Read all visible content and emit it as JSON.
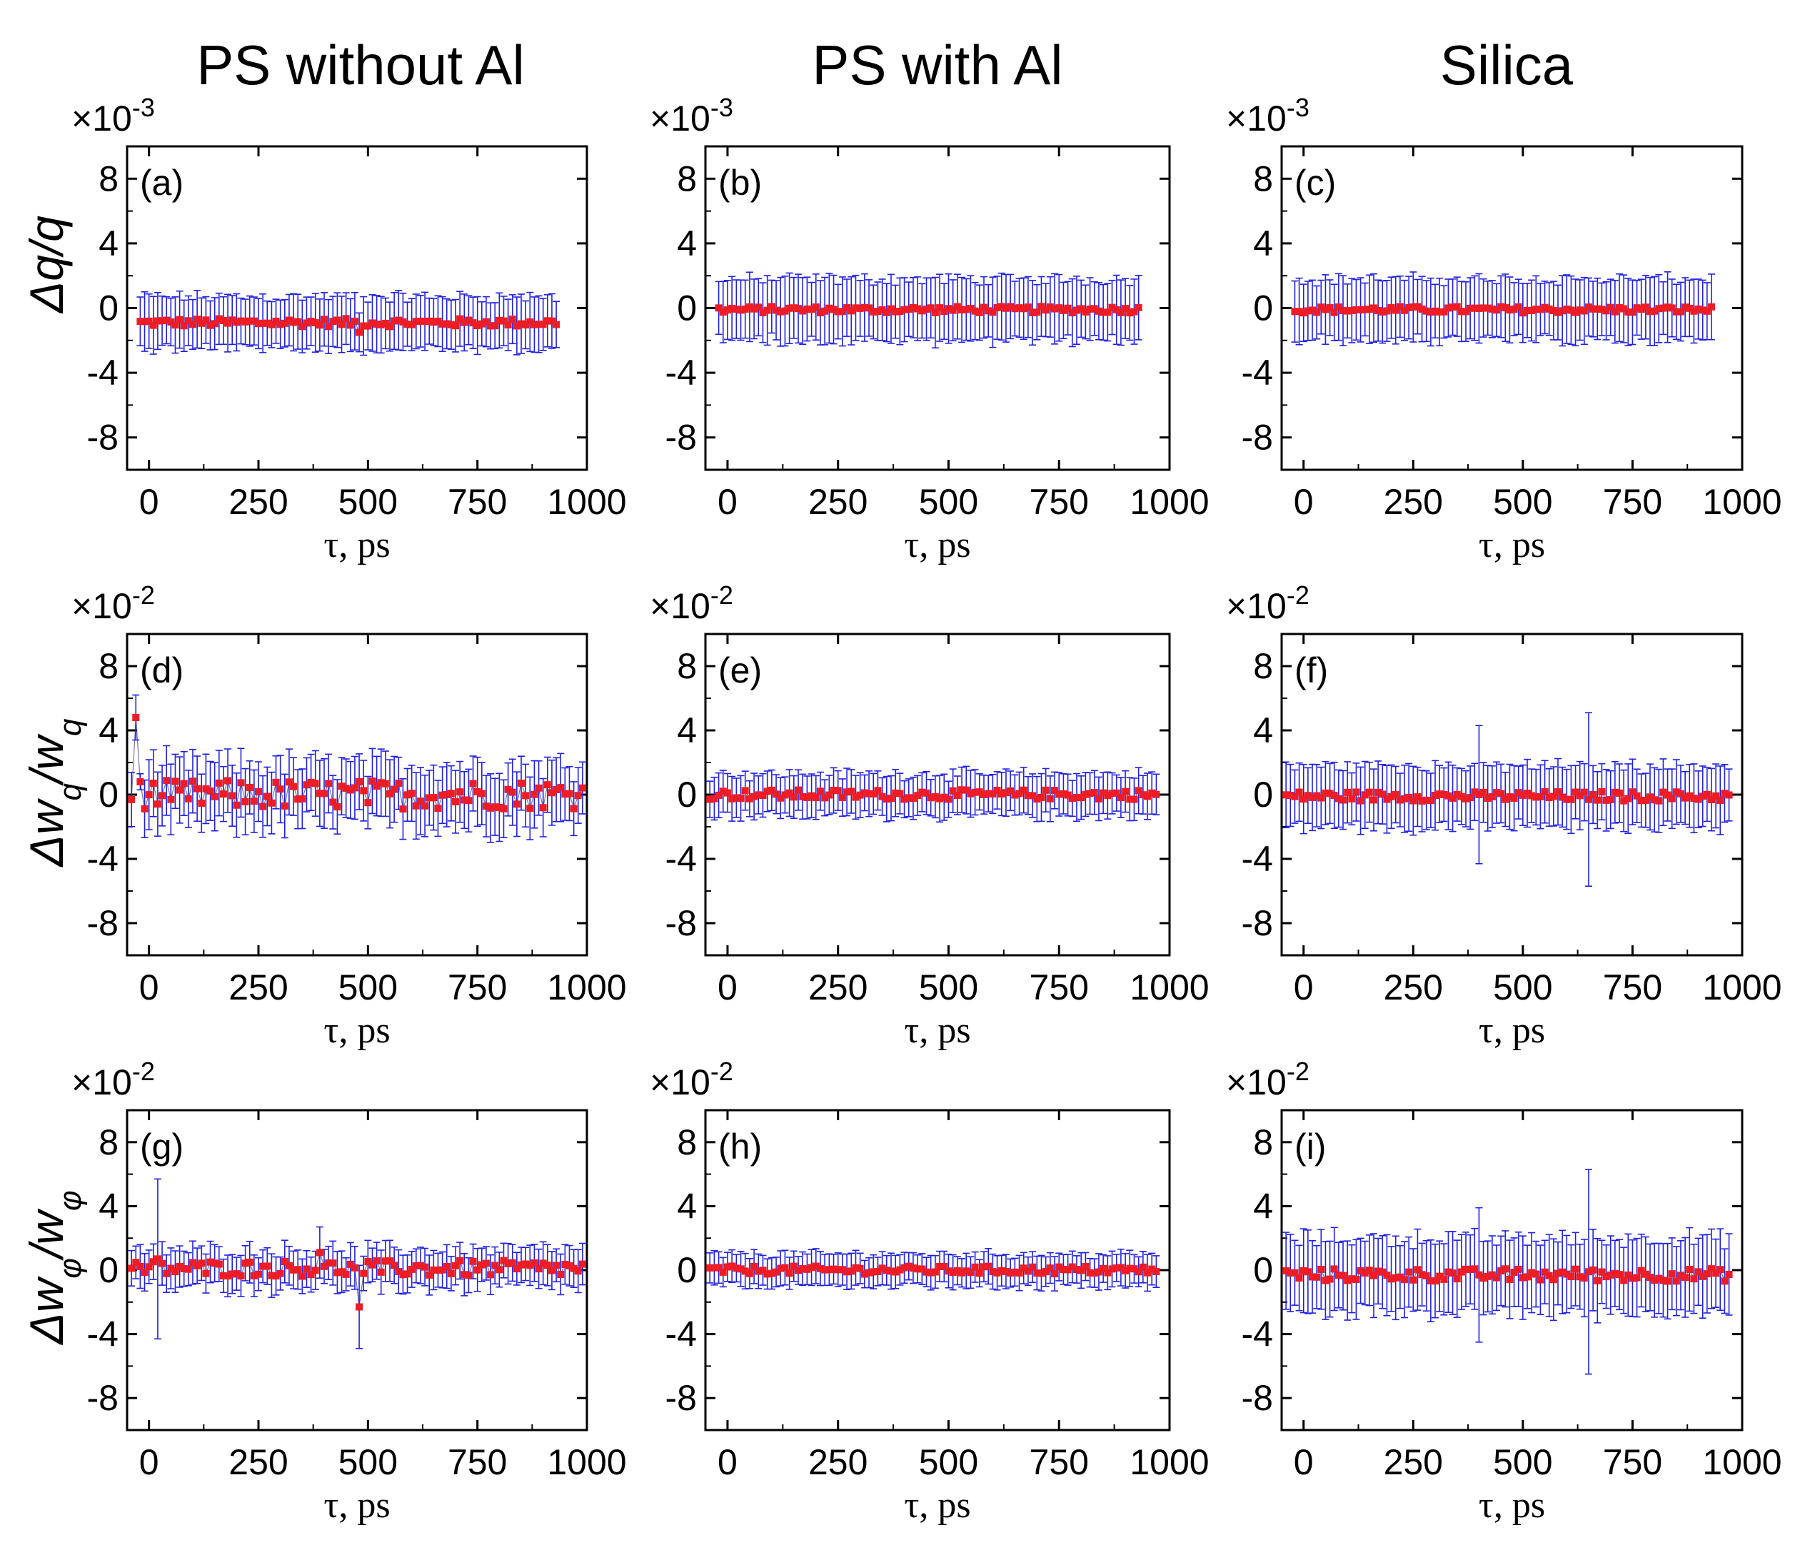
{
  "column_titles": [
    "PS without Al",
    "PS with Al",
    "Silica"
  ],
  "row_ylabels": [
    {
      "main": "Δq/q",
      "sub": ""
    },
    {
      "main": "Δw",
      "sub": "q",
      "mid": "/w",
      "sub2": "q"
    },
    {
      "main": "Δw",
      "sub": "φ",
      "mid": "/w",
      "sub2": "φ"
    }
  ],
  "colors": {
    "marker": "#ee1c24",
    "errorbar": "#2020e0",
    "axis": "#000000"
  },
  "chart_data": [
    {
      "type": "scatter",
      "panel": "(a)",
      "xlabel": "τ, ps",
      "ylabel": "Δq/q",
      "scale_base": "×10",
      "scale_exp": "-3",
      "xlim": [
        -50,
        1000
      ],
      "ylim": [
        -10,
        10
      ],
      "xticks": [
        0,
        250,
        500,
        750,
        1000
      ],
      "yticks": [
        8,
        4,
        0,
        -4,
        -8
      ],
      "x_start": -20,
      "x_step": 10,
      "n": 96,
      "center": -0.9,
      "noise": 0.25,
      "err": 1.6,
      "spikes": [
        {
          "x": 480,
          "dy": -0.6,
          "de": 1.2
        }
      ]
    },
    {
      "type": "scatter",
      "panel": "(b)",
      "xlabel": "τ, ps",
      "ylabel": "Δq/q",
      "scale_base": "×10",
      "scale_exp": "-3",
      "xlim": [
        -50,
        1000
      ],
      "ylim": [
        -10,
        10
      ],
      "xticks": [
        0,
        250,
        500,
        750,
        1000
      ],
      "yticks": [
        8,
        4,
        0,
        -4,
        -8
      ],
      "x_start": -20,
      "x_step": 10,
      "n": 96,
      "center": -0.1,
      "noise": 0.2,
      "err": 1.9,
      "spikes": []
    },
    {
      "type": "scatter",
      "panel": "(c)",
      "xlabel": "τ, ps",
      "ylabel": "Δq/q",
      "scale_base": "×10",
      "scale_exp": "-3",
      "xlim": [
        -50,
        1000
      ],
      "ylim": [
        -10,
        10
      ],
      "xticks": [
        0,
        250,
        500,
        750,
        1000
      ],
      "yticks": [
        8,
        4,
        0,
        -4,
        -8
      ],
      "x_start": -20,
      "x_step": 10,
      "n": 96,
      "center": -0.1,
      "noise": 0.2,
      "err": 1.9,
      "spikes": []
    },
    {
      "type": "scatter",
      "panel": "(d)",
      "xlabel": "τ, ps",
      "ylabel": "Δw_q/w_q",
      "scale_base": "×10",
      "scale_exp": "-2",
      "xlim": [
        -50,
        1000
      ],
      "ylim": [
        -10,
        10
      ],
      "xticks": [
        0,
        250,
        500,
        750,
        1000
      ],
      "yticks": [
        8,
        4,
        0,
        -4,
        -8
      ],
      "x_start": -40,
      "x_step": 10,
      "n": 105,
      "center": 0.0,
      "noise": 0.9,
      "err": 1.9,
      "spikes": [
        {
          "x": -30,
          "dy": 4.8,
          "de": 1.4
        },
        {
          "x": -20,
          "dy": 0.8,
          "de": 0.5
        },
        {
          "x": 50,
          "dy": -0.3,
          "de": 2.2
        }
      ]
    },
    {
      "type": "scatter",
      "panel": "(e)",
      "xlabel": "τ, ps",
      "ylabel": "Δw_q/w_q",
      "scale_base": "×10",
      "scale_exp": "-2",
      "xlim": [
        -50,
        1000
      ],
      "ylim": [
        -10,
        10
      ],
      "xticks": [
        0,
        250,
        500,
        750,
        1000
      ],
      "yticks": [
        8,
        4,
        0,
        -4,
        -8
      ],
      "x_start": -40,
      "x_step": 10,
      "n": 102,
      "center": 0.0,
      "noise": 0.3,
      "err": 1.3,
      "spikes": []
    },
    {
      "type": "scatter",
      "panel": "(f)",
      "xlabel": "τ, ps",
      "ylabel": "Δw_q/w_q",
      "scale_base": "×10",
      "scale_exp": "-2",
      "xlim": [
        -50,
        1000
      ],
      "ylim": [
        -10,
        10
      ],
      "xticks": [
        0,
        250,
        500,
        750,
        1000
      ],
      "yticks": [
        8,
        4,
        0,
        -4,
        -8
      ],
      "x_start": -40,
      "x_step": 10,
      "n": 102,
      "center": -0.1,
      "noise": 0.3,
      "err": 1.9,
      "spikes": [
        {
          "x": 400,
          "dy": 0.1,
          "de": 4.3
        },
        {
          "x": 650,
          "dy": -0.2,
          "de": 5.4
        }
      ]
    },
    {
      "type": "scatter",
      "panel": "(g)",
      "xlabel": "τ, ps",
      "ylabel": "Δw_φ/w_φ",
      "scale_base": "×10",
      "scale_exp": "-2",
      "xlim": [
        -50,
        1000
      ],
      "ylim": [
        -10,
        10
      ],
      "xticks": [
        0,
        250,
        500,
        750,
        1000
      ],
      "yticks": [
        8,
        4,
        0,
        -4,
        -8
      ],
      "x_start": -40,
      "x_step": 10,
      "n": 105,
      "center": 0.1,
      "noise": 0.5,
      "err": 1.2,
      "spikes": [
        {
          "x": 20,
          "dy": 0.6,
          "de": 5.0
        },
        {
          "x": 480,
          "dy": -2.4,
          "de": 2.6
        },
        {
          "x": 390,
          "dy": 1.0,
          "de": 1.6
        }
      ]
    },
    {
      "type": "scatter",
      "panel": "(h)",
      "xlabel": "τ, ps",
      "ylabel": "Δw_φ/w_φ",
      "scale_base": "×10",
      "scale_exp": "-2",
      "xlim": [
        -50,
        1000
      ],
      "ylim": [
        -10,
        10
      ],
      "xticks": [
        0,
        250,
        500,
        750,
        1000
      ],
      "yticks": [
        8,
        4,
        0,
        -4,
        -8
      ],
      "x_start": -40,
      "x_step": 10,
      "n": 102,
      "center": 0.0,
      "noise": 0.25,
      "err": 1.0,
      "spikes": []
    },
    {
      "type": "scatter",
      "panel": "(i)",
      "xlabel": "τ, ps",
      "ylabel": "Δw_φ/w_φ",
      "scale_base": "×10",
      "scale_exp": "-2",
      "xlim": [
        -50,
        1000
      ],
      "ylim": [
        -10,
        10
      ],
      "xticks": [
        0,
        250,
        500,
        750,
        1000
      ],
      "yticks": [
        8,
        4,
        0,
        -4,
        -8
      ],
      "x_start": -40,
      "x_step": 10,
      "n": 102,
      "center": -0.3,
      "noise": 0.4,
      "err": 2.3,
      "spikes": [
        {
          "x": 650,
          "dy": 0.2,
          "de": 6.4
        },
        {
          "x": 400,
          "dy": 0.0,
          "de": 4.2
        }
      ]
    }
  ]
}
